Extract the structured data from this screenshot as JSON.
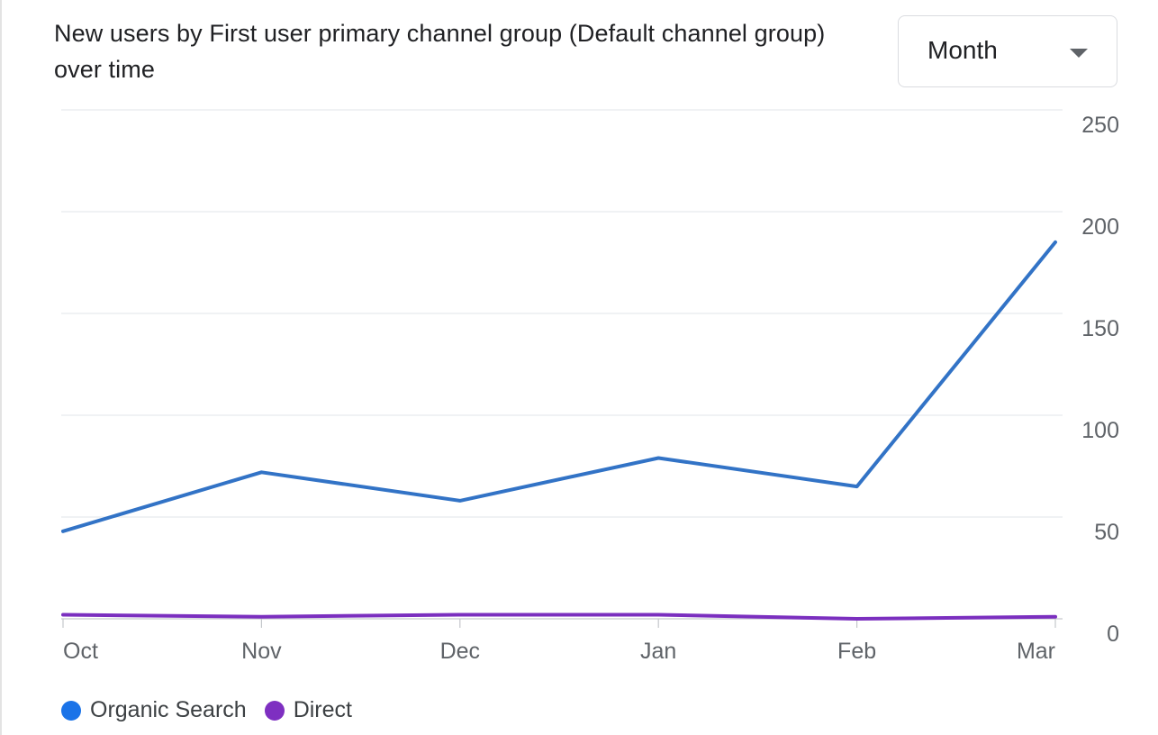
{
  "header": {
    "title": "New users by First user primary channel group (Default channel group) over time"
  },
  "period_select": {
    "selected": "Month",
    "icon": "arrow-drop-down-icon"
  },
  "chart_data": {
    "type": "line",
    "title": "New users by First user primary channel group (Default channel group) over time",
    "categories": [
      "Oct",
      "Nov",
      "Dec",
      "Jan",
      "Feb",
      "Mar"
    ],
    "series": [
      {
        "name": "Organic Search",
        "color": "#3273c6",
        "values": [
          43,
          72,
          58,
          79,
          65,
          185
        ]
      },
      {
        "name": "Direct",
        "color": "#7b2fbf",
        "values": [
          2,
          1,
          2,
          2,
          0,
          1
        ]
      }
    ],
    "yticks": [
      0,
      50,
      100,
      150,
      200,
      250
    ],
    "ylim": [
      0,
      250
    ],
    "y_axis_position": "right",
    "grid": true,
    "legend_position": "bottom-left",
    "xlabel": "",
    "ylabel": ""
  },
  "legend": {
    "items": [
      {
        "label": "Organic Search",
        "color": "#1a73e8"
      },
      {
        "label": "Direct",
        "color": "#7e2fc1"
      }
    ]
  }
}
